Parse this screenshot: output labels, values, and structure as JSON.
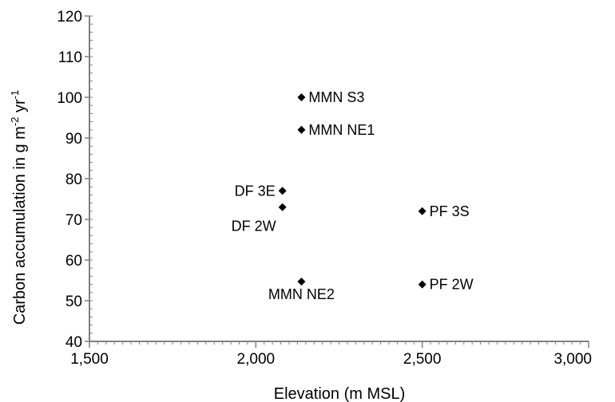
{
  "chart_data": {
    "type": "scatter",
    "title": "",
    "xlabel": "Elevation (m MSL)",
    "ylabel_parts": {
      "base": "Carbon accumulation in g m",
      "sup1": "-2",
      "mid": " yr",
      "sup2": "-1"
    },
    "xlim": [
      1500,
      3000
    ],
    "ylim": [
      40,
      120
    ],
    "xticks": [
      1500,
      2000,
      2500,
      3000
    ],
    "xtick_labels": [
      "1,500",
      "2,000",
      "2,500",
      "3,000"
    ],
    "yticks": [
      40,
      50,
      60,
      70,
      80,
      90,
      100,
      110,
      120
    ],
    "ytick_labels": [
      "40",
      "50",
      "60",
      "70",
      "80",
      "90",
      "100",
      "110",
      "120"
    ],
    "grid": false,
    "marker": "diamond",
    "marker_color": "#000000",
    "points": [
      {
        "label": "MMN S3",
        "x": 2137,
        "y": 100,
        "label_pos": "right"
      },
      {
        "label": "MMN NE1",
        "x": 2137,
        "y": 92,
        "label_pos": "right"
      },
      {
        "label": "DF 3E",
        "x": 2080,
        "y": 77,
        "label_pos": "left"
      },
      {
        "label": "DF 2W",
        "x": 2080,
        "y": 73,
        "label_pos": "below-left"
      },
      {
        "label": "PF 3S",
        "x": 2500,
        "y": 72,
        "label_pos": "right"
      },
      {
        "label": "MMN NE2",
        "x": 2137,
        "y": 54.7,
        "label_pos": "below"
      },
      {
        "label": "PF 2W",
        "x": 2500,
        "y": 54,
        "label_pos": "right"
      }
    ]
  }
}
